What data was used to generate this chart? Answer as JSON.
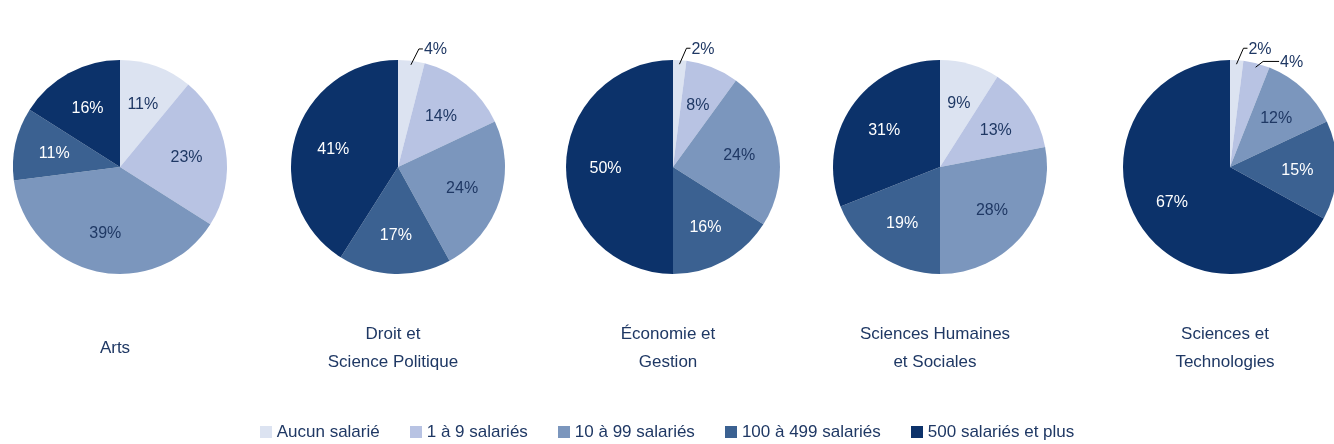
{
  "chart_data": [
    {
      "type": "pie",
      "title": "Arts",
      "categories": [
        "Aucun salarié",
        "1 à 9 salariés",
        "10 à 99 salariés",
        "100 à 499 salariés",
        "500 salariés et plus"
      ],
      "values": [
        11,
        23,
        39,
        11,
        16
      ],
      "colors": [
        "#dce3f1",
        "#b8c3e3",
        "#7b96bd",
        "#3b6191",
        "#0c326a"
      ],
      "value_labels": [
        "11%",
        "23%",
        "39%",
        "11%",
        "16%"
      ],
      "legend": "bottom"
    },
    {
      "type": "pie",
      "title": "Droit et\nScience Politique",
      "categories": [
        null,
        null,
        null,
        null,
        null
      ],
      "values": [
        4,
        14,
        24,
        17,
        41
      ],
      "colors": [
        "#dce3f1",
        "#b8c3e3",
        "#7b96bd",
        "#3b6191",
        "#0c326a"
      ],
      "value_labels": [
        "4%",
        "14%",
        "24%",
        "17%",
        "41%"
      ]
    },
    {
      "type": "pie",
      "title": "Économie et\nGestion",
      "categories": [
        null,
        null,
        null,
        null,
        null
      ],
      "values": [
        2,
        8,
        24,
        16,
        50
      ],
      "colors": [
        "#dce3f1",
        "#b8c3e3",
        "#7b96bd",
        "#3b6191",
        "#0c326a"
      ],
      "value_labels": [
        "2%",
        "8%",
        "24%",
        "16%",
        "50%"
      ]
    },
    {
      "type": "pie",
      "title": "Sciences Humaines\net Sociales",
      "categories": [
        null,
        null,
        null,
        null,
        null
      ],
      "values": [
        9,
        13,
        28,
        19,
        31
      ],
      "colors": [
        "#dce3f1",
        "#b8c3e3",
        "#7b96bd",
        "#3b6191",
        "#0c326a"
      ],
      "value_labels": [
        "9%",
        "13%",
        "28%",
        "19%",
        "31%"
      ]
    },
    {
      "type": "pie",
      "title": "Sciences et\nTechnologies",
      "categories": [
        null,
        null,
        null,
        null,
        null
      ],
      "values": [
        2,
        4,
        12,
        15,
        67
      ],
      "colors": [
        "#dce3f1",
        "#b8c3e3",
        "#7b96bd",
        "#3b6191",
        "#0c326a"
      ],
      "value_labels": [
        "2%",
        "4%",
        "12%",
        "15%",
        "67%"
      ]
    }
  ]
}
